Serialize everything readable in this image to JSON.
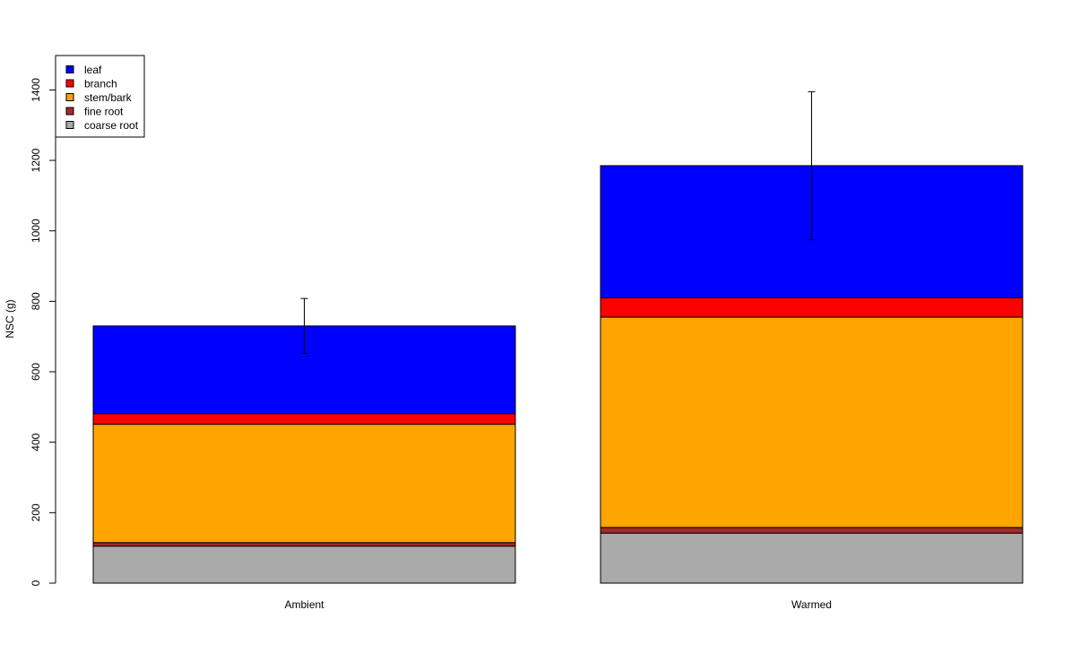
{
  "chart_data": {
    "type": "bar",
    "stacked": true,
    "title": "",
    "xlabel": "",
    "ylabel": "NSC (g)",
    "ylim": [
      0,
      1500
    ],
    "yticks": [
      0,
      200,
      400,
      600,
      800,
      1000,
      1200,
      1400
    ],
    "grid": false,
    "legend_position": "top-left",
    "categories": [
      "Ambient",
      "Warmed"
    ],
    "series": [
      {
        "name": "coarse root",
        "color": "#aaaaaa",
        "values": [
          105,
          142
        ]
      },
      {
        "name": "fine root",
        "color": "#a52a2a",
        "values": [
          10,
          16
        ]
      },
      {
        "name": "stem/bark",
        "color": "#ffa500",
        "values": [
          336,
          597
        ]
      },
      {
        "name": "branch",
        "color": "#ff0000",
        "values": [
          30,
          55
        ]
      },
      {
        "name": "leaf",
        "color": "#0000ff",
        "values": [
          249,
          375
        ]
      }
    ],
    "legend_order": [
      "leaf",
      "branch",
      "stem/bark",
      "fine root",
      "coarse root"
    ],
    "totals": [
      730,
      1185
    ],
    "error_bars": [
      {
        "category": "Ambient",
        "low": 652,
        "high": 808
      },
      {
        "category": "Warmed",
        "low": 975,
        "high": 1395
      }
    ]
  }
}
